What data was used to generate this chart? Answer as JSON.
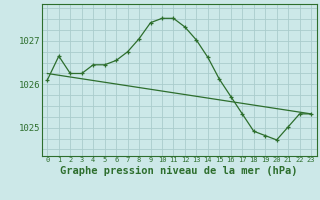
{
  "bg_color": "#cce8e8",
  "grid_color": "#aacccc",
  "line_color": "#2d6e2d",
  "title": "Graphe pression niveau de la mer (hPa)",
  "title_fontsize": 7.5,
  "xlim": [
    -0.5,
    23.5
  ],
  "ylim": [
    1024.35,
    1027.85
  ],
  "yticks": [
    1025,
    1026,
    1027
  ],
  "xticks": [
    0,
    1,
    2,
    3,
    4,
    5,
    6,
    7,
    8,
    9,
    10,
    11,
    12,
    13,
    14,
    15,
    16,
    17,
    18,
    19,
    20,
    21,
    22,
    23
  ],
  "series1_x": [
    0,
    1,
    2,
    3,
    4,
    5,
    6,
    7,
    8,
    9,
    10,
    11,
    12,
    13,
    14,
    15,
    16,
    17,
    18,
    19,
    20,
    21,
    22,
    23
  ],
  "series1_y": [
    1026.1,
    1026.65,
    1026.25,
    1026.25,
    1026.45,
    1026.45,
    1026.55,
    1026.75,
    1027.05,
    1027.42,
    1027.52,
    1027.52,
    1027.32,
    1027.02,
    1026.62,
    1026.12,
    1025.72,
    1025.32,
    1024.92,
    1024.82,
    1024.72,
    1025.02,
    1025.32,
    1025.32
  ],
  "series2_x": [
    0,
    23
  ],
  "series2_y": [
    1026.25,
    1025.32
  ]
}
